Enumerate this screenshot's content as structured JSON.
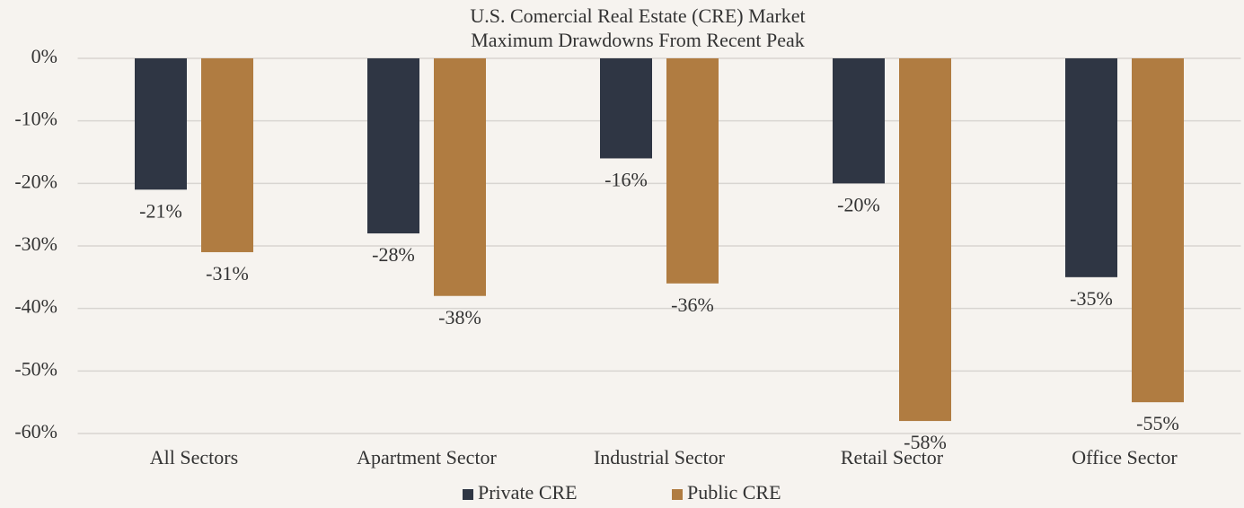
{
  "chart_data": {
    "type": "bar",
    "title": "U.S. Comercial Real Estate (CRE) Market",
    "subtitle": "Maximum Drawdowns From Recent Peak",
    "categories": [
      "All Sectors",
      "Apartment Sector",
      "Industrial Sector",
      "Retail Sector",
      "Office Sector"
    ],
    "series": [
      {
        "name": "Private CRE",
        "color": "#2f3644",
        "values": [
          -21,
          -28,
          -16,
          -20,
          -35
        ],
        "value_labels": [
          "-21%",
          "-28%",
          "-16%",
          "-20%",
          "-35%"
        ]
      },
      {
        "name": "Public CRE",
        "color": "#b07c41",
        "values": [
          -31,
          -38,
          -36,
          -58,
          -55
        ],
        "value_labels": [
          "-31%",
          "-38%",
          "-36%",
          "-58%",
          "-55%"
        ]
      }
    ],
    "ylim": [
      -60,
      0
    ],
    "yticks": [
      {
        "value": 0,
        "label": "0%"
      },
      {
        "value": -10,
        "label": "-10%"
      },
      {
        "value": -20,
        "label": "-20%"
      },
      {
        "value": -30,
        "label": "-30%"
      },
      {
        "value": -40,
        "label": "-40%"
      },
      {
        "value": -50,
        "label": "-50%"
      },
      {
        "value": -60,
        "label": "-60%"
      }
    ],
    "grid": true,
    "legend": "bottom"
  }
}
